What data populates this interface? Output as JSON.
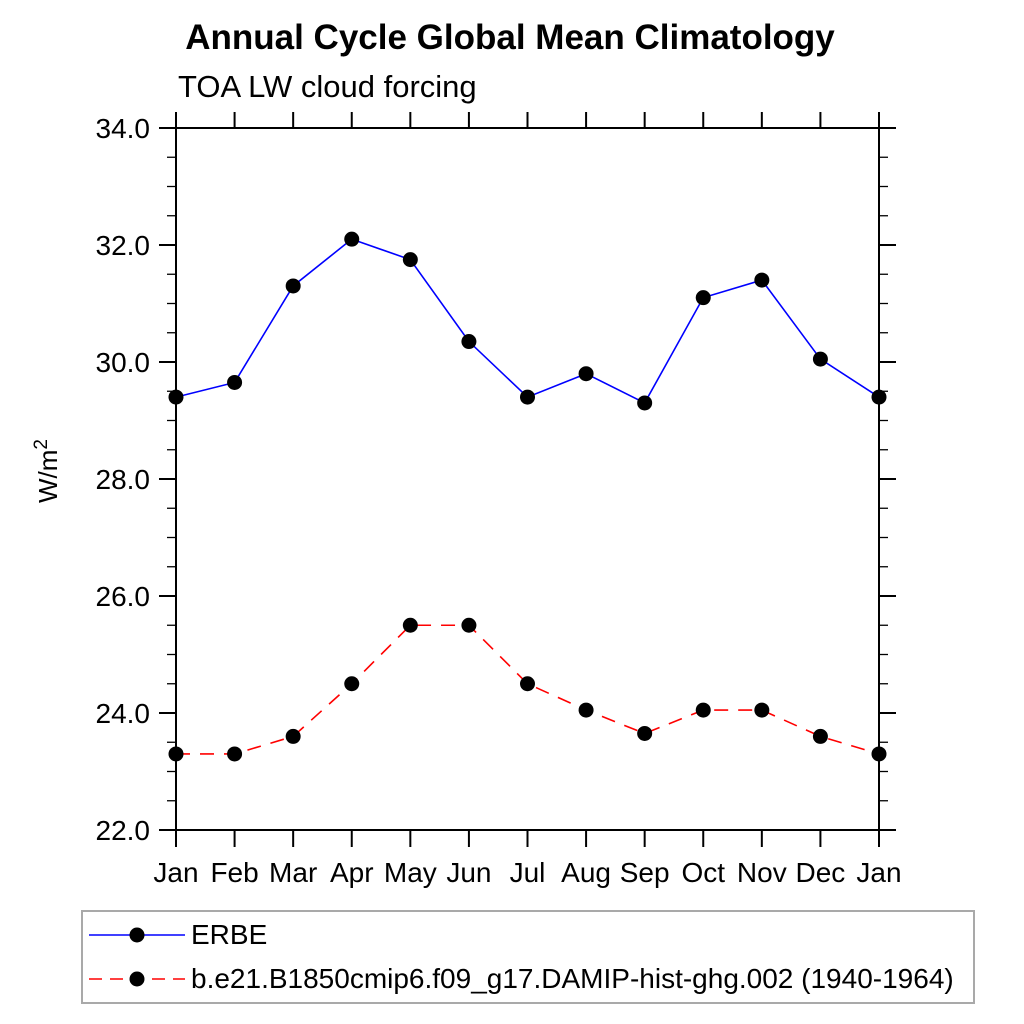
{
  "header": {
    "title": "Annual Cycle Global Mean Climatology",
    "subtitle": "TOA LW cloud forcing"
  },
  "y_axis": {
    "label_base": "W/m",
    "label_exponent": "2",
    "tick_labels": [
      "22.0",
      "24.0",
      "26.0",
      "28.0",
      "30.0",
      "32.0",
      "34.0"
    ]
  },
  "x_axis": {
    "tick_labels": [
      "Jan",
      "Feb",
      "Mar",
      "Apr",
      "May",
      "Jun",
      "Jul",
      "Aug",
      "Sep",
      "Oct",
      "Nov",
      "Dec",
      "Jan"
    ]
  },
  "colors": {
    "erbe_line": "#0000ff",
    "model_line": "#ff0000",
    "marker": "#000000",
    "axis": "#000000",
    "legend_border": "#a9a9a9"
  },
  "chart_data": {
    "type": "line",
    "title": "Annual Cycle Global Mean Climatology",
    "subtitle": "TOA LW cloud forcing",
    "ylabel": "W/m²",
    "xlabel": "",
    "categories": [
      "Jan",
      "Feb",
      "Mar",
      "Apr",
      "May",
      "Jun",
      "Jul",
      "Aug",
      "Sep",
      "Oct",
      "Nov",
      "Dec",
      "Jan"
    ],
    "ylim": [
      22.0,
      34.0
    ],
    "y_major_step": 2.0,
    "y_minor_step": 0.5,
    "grid": false,
    "legend_position": "bottom-left-box",
    "series": [
      {
        "name": "ERBE",
        "line_color": "#0000ff",
        "line_style": "solid",
        "marker": "filled-circle",
        "marker_color": "#000000",
        "values": [
          29.4,
          29.65,
          31.3,
          32.1,
          31.75,
          30.35,
          29.4,
          29.8,
          29.3,
          31.1,
          31.4,
          30.05,
          29.4
        ]
      },
      {
        "name": "b.e21.B1850cmip6.f09_g17.DAMIP-hist-ghg.002 (1940-1964)",
        "line_color": "#ff0000",
        "line_style": "dashed",
        "marker": "filled-circle",
        "marker_color": "#000000",
        "values": [
          23.3,
          23.3,
          23.6,
          24.5,
          25.5,
          25.5,
          24.5,
          24.05,
          23.65,
          24.05,
          24.05,
          23.6,
          23.3
        ]
      }
    ]
  }
}
